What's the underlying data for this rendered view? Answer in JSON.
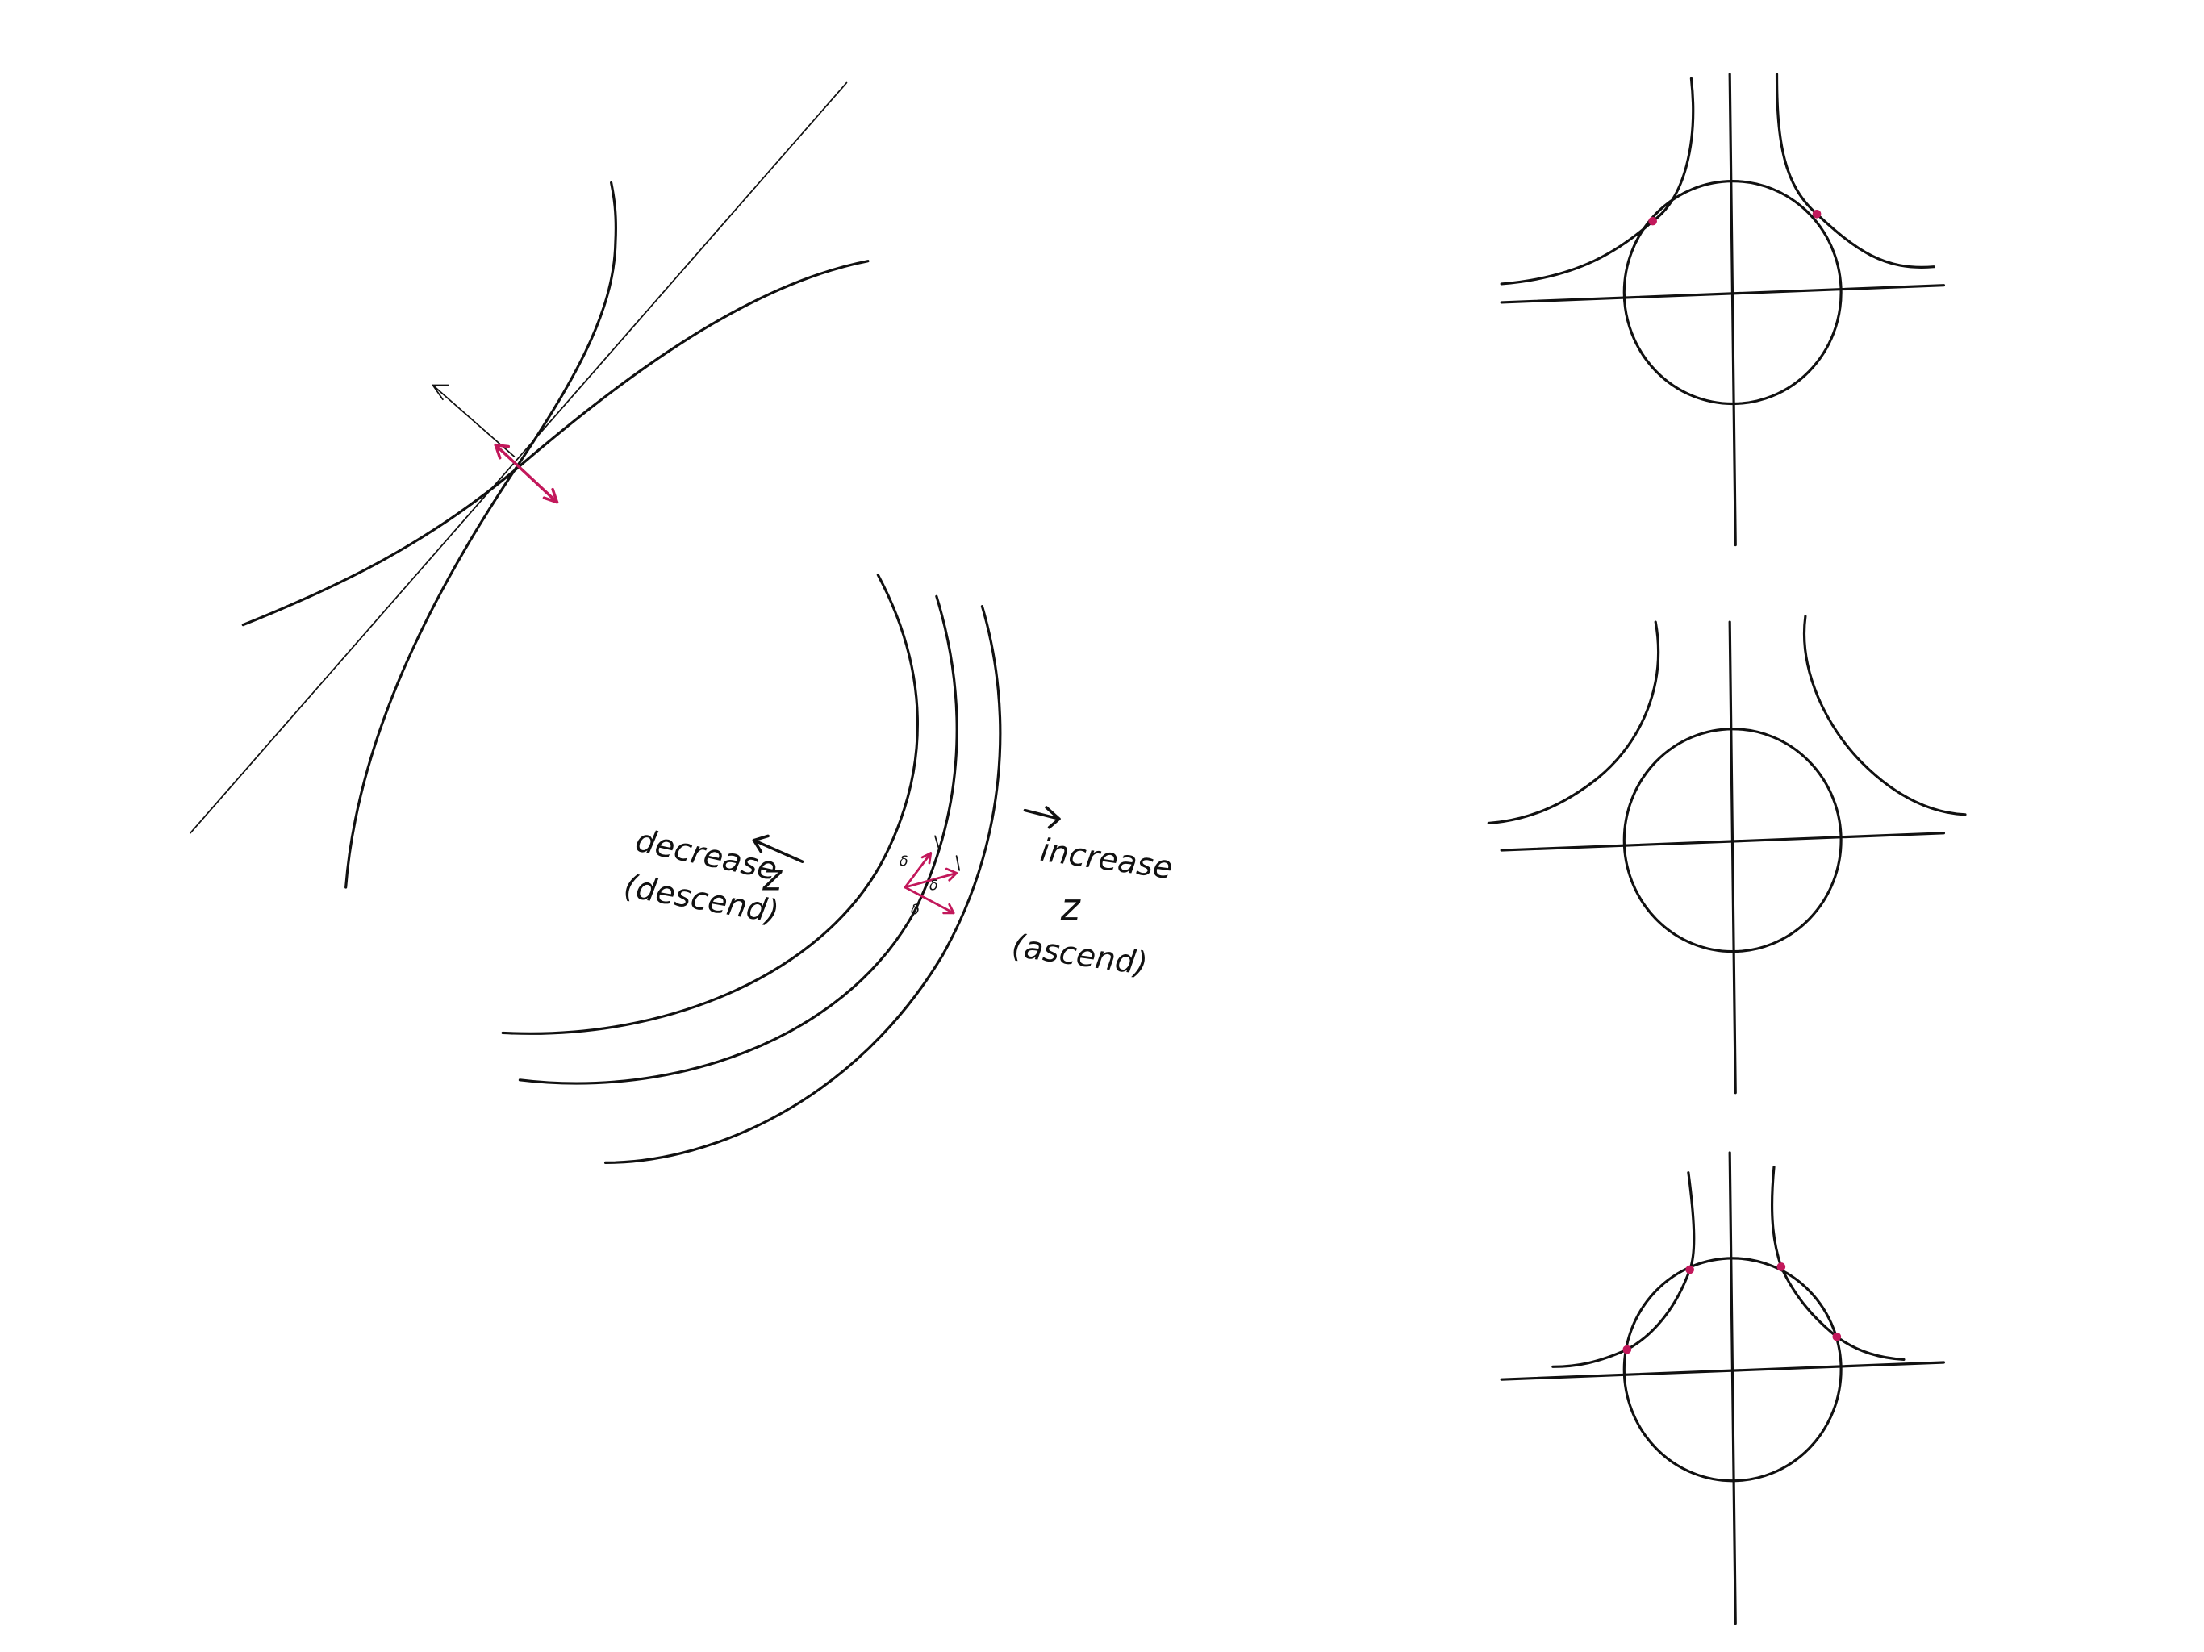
{
  "colors": {
    "ink": "#111111",
    "accent": "#c2185b"
  },
  "labels": {
    "decrease_line1": "decrease",
    "decrease_z": "z",
    "decrease_line3": "(descend)",
    "increase_line1": "increase",
    "increase_z": "z",
    "increase_line3": "(ascend)",
    "delta": "δ"
  }
}
